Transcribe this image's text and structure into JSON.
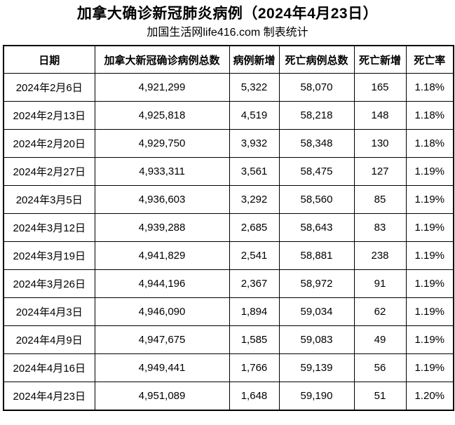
{
  "page": {
    "title": "加拿大确诊新冠肺炎病例（2024年4月23日）",
    "subtitle": "加国生活网life416.com 制表统计"
  },
  "colors": {
    "text": "#000000",
    "border": "#000000",
    "background": "#ffffff"
  },
  "chart_data": {
    "type": "table",
    "title": "加拿大确诊新冠肺炎病例（2024年4月23日）",
    "columns": [
      "日期",
      "加拿大新冠确诊病例总数",
      "病例新增",
      "死亡病例总数",
      "死亡新增",
      "死亡率"
    ],
    "rows": [
      [
        "2024年2月6日",
        "4,921,299",
        "5,322",
        "58,070",
        "165",
        "1.18%"
      ],
      [
        "2024年2月13日",
        "4,925,818",
        "4,519",
        "58,218",
        "148",
        "1.18%"
      ],
      [
        "2024年2月20日",
        "4,929,750",
        "3,932",
        "58,348",
        "130",
        "1.18%"
      ],
      [
        "2024年2月27日",
        "4,933,311",
        "3,561",
        "58,475",
        "127",
        "1.19%"
      ],
      [
        "2024年3月5日",
        "4,936,603",
        "3,292",
        "58,560",
        "85",
        "1.19%"
      ],
      [
        "2024年3月12日",
        "4,939,288",
        "2,685",
        "58,643",
        "83",
        "1.19%"
      ],
      [
        "2024年3月19日",
        "4,941,829",
        "2,541",
        "58,881",
        "238",
        "1.19%"
      ],
      [
        "2024年3月26日",
        "4,944,196",
        "2,367",
        "58,972",
        "91",
        "1.19%"
      ],
      [
        "2024年4月3日",
        "4,946,090",
        "1,894",
        "59,034",
        "62",
        "1.19%"
      ],
      [
        "2024年4月9日",
        "4,947,675",
        "1,585",
        "59,083",
        "49",
        "1.19%"
      ],
      [
        "2024年4月16日",
        "4,949,441",
        "1,766",
        "59,139",
        "56",
        "1.19%"
      ],
      [
        "2024年4月23日",
        "4,951,089",
        "1,648",
        "59,190",
        "51",
        "1.20%"
      ]
    ]
  }
}
